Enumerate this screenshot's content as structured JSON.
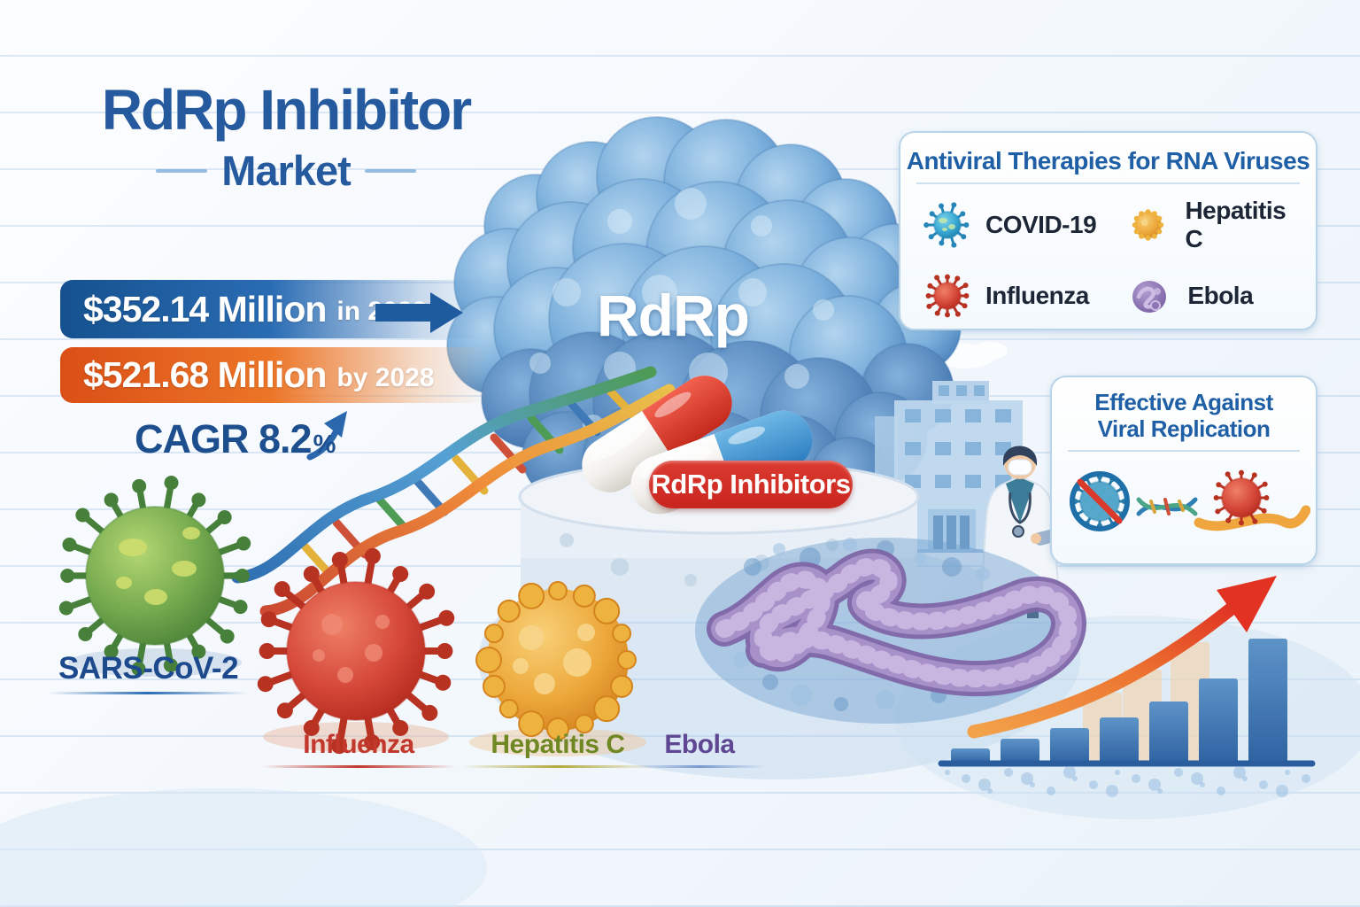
{
  "header": {
    "title_line1": "RdRp Inhibitor",
    "title_line2": "Market"
  },
  "market_stats": {
    "current": {
      "value": "$352.14 Million",
      "period": "in 2023"
    },
    "forecast": {
      "value": "$521.68 Million",
      "period": "by 2028"
    },
    "cagr": {
      "text": "CAGR 8.2",
      "unit": "%"
    }
  },
  "center_illustration": {
    "protein_label": "RdRp",
    "badge_label": "RdRp Inhibitors"
  },
  "therapies_panel": {
    "title": "Antiviral Therapies for RNA Viruses",
    "items": [
      {
        "label": "COVID-19",
        "icon": "covid-virus-icon",
        "color": "#3fb0d8"
      },
      {
        "label": "Hepatitis C",
        "icon": "hepatitis-virus-icon",
        "color": "#eda33c"
      },
      {
        "label": "Influenza",
        "icon": "influenza-virus-icon",
        "color": "#cc3a2b"
      },
      {
        "label": "Ebola",
        "icon": "ebola-virus-icon",
        "color": "#8d74b4"
      }
    ]
  },
  "replication_panel": {
    "title_line1": "Effective Against",
    "title_line2": "Viral Replication"
  },
  "virus_gallery": [
    {
      "label": "SARS-CoV-2",
      "color": "#1c4a8c"
    },
    {
      "label": "Influenza",
      "color": "#c2382c"
    },
    {
      "label": "Hepatitis C",
      "color": "#6f8824"
    },
    {
      "label": "Ebola",
      "color": "#5f4793"
    }
  ],
  "chart_data": {
    "type": "bar",
    "title": "",
    "description": "decorative market-growth chart, no axes or tick labels, upward trend arrow",
    "values": [
      17,
      28,
      40,
      52,
      70,
      96,
      141
    ],
    "ghost_values": [
      80,
      106,
      137
    ],
    "unit": "relative height",
    "bar_color_top": "#5e93c8",
    "bar_color_bottom": "#2f62a2",
    "ghost_color": "#f6cfa0",
    "baseline_color": "#2a5d9e",
    "trend_arrow_colors": [
      "#f59d3d",
      "#e03324"
    ],
    "grid": false,
    "legend": false
  },
  "colors": {
    "title_blue": "#265a9e",
    "banner_blue": "#1a5ea8",
    "banner_orange": "#e4581b",
    "badge_red": "#cf2e27",
    "panel_border": "#b9d4e8",
    "protein_blob_blue": "#4e8ec6",
    "ebola_worm_purple": "#a890c9"
  }
}
